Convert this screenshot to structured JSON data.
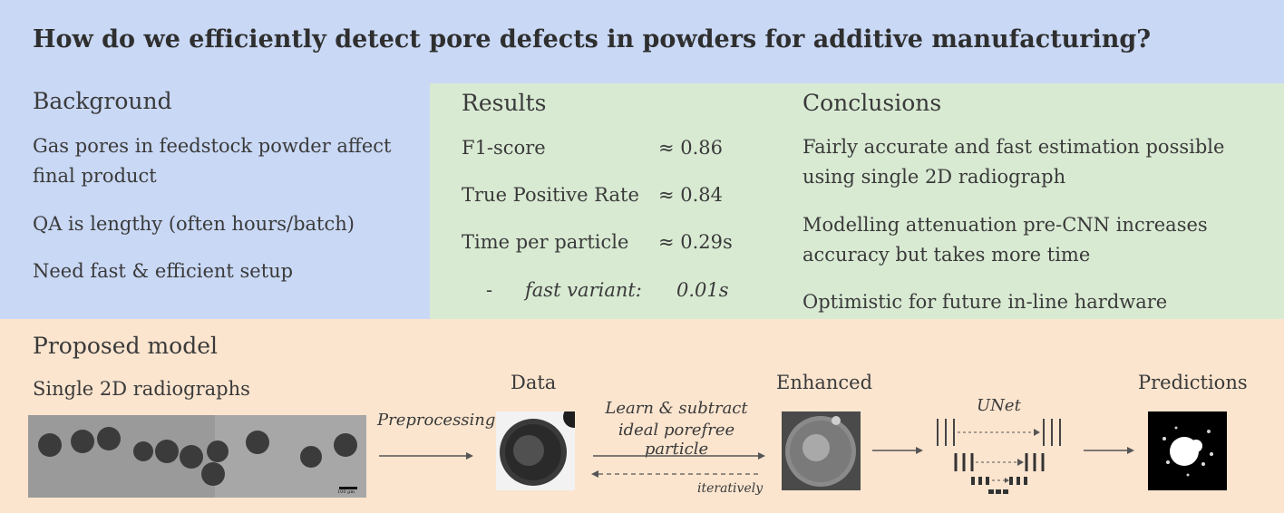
{
  "title": "How do we efficiently detect pore defects in powders for additive manufacturing?",
  "background": {
    "heading": "Background",
    "items": [
      "Gas pores in feedstock powder affect final product",
      "QA is lengthy (often hours/batch)",
      "Need fast & efficient setup"
    ]
  },
  "results": {
    "heading": "Results",
    "rows": [
      {
        "label": "F1-score",
        "value": "≈ 0.86"
      },
      {
        "label": "True Positive Rate",
        "value": "≈ 0.84"
      },
      {
        "label": "Time per particle",
        "value": "≈ 0.29s"
      }
    ],
    "sub": {
      "dash": "-",
      "label": "fast variant:",
      "value": "0.01s"
    }
  },
  "conclusions": {
    "heading": "Conclusions",
    "items": [
      "Fairly accurate and fast estimation possible using single 2D radiograph",
      "Modelling attenuation pre-CNN increases accuracy but takes more time",
      "Optimistic for future in-line hardware"
    ]
  },
  "model": {
    "heading": "Proposed model",
    "radiographs_label": "Single 2D radiographs",
    "scale_bar": "100 µm",
    "preprocessing_label": "Preprocessing",
    "data_label": "Data",
    "learn_label_1": "Learn & subtract",
    "learn_label_2": "ideal porefree particle",
    "iteratively_label": "iteratively",
    "enhanced_label": "Enhanced",
    "unet_label": "UNet",
    "predictions_label": "Predictions"
  }
}
